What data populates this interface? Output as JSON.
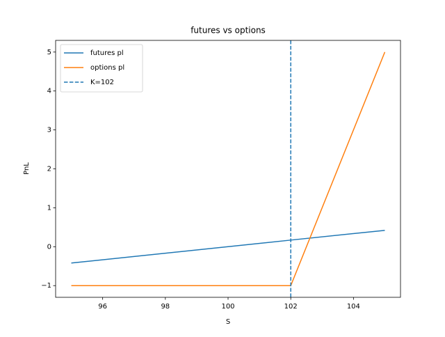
{
  "chart_data": {
    "type": "line",
    "title": "futures vs options",
    "x_label": "S",
    "y_label": "PnL",
    "x": [
      95,
      102,
      105
    ],
    "series": [
      {
        "name": "futures pl",
        "color": "#1f77b4",
        "values": [
          -0.42,
          0.17,
          0.42
        ]
      },
      {
        "name": "options pl",
        "color": "#ff7f0e",
        "values": [
          -1,
          -1,
          5
        ]
      }
    ],
    "vline": {
      "x": 102,
      "name": "K=102",
      "color": "#1f77b4",
      "dashed": true
    },
    "xlim": [
      94.5,
      105.5
    ],
    "xticks": [
      96,
      98,
      100,
      102,
      104
    ],
    "ylim": [
      -1.3,
      5.3
    ],
    "yticks": [
      {
        "value": -1,
        "label": "−1"
      },
      0,
      1,
      2,
      3,
      4,
      5
    ],
    "legend": "upper left",
    "grid": false
  }
}
